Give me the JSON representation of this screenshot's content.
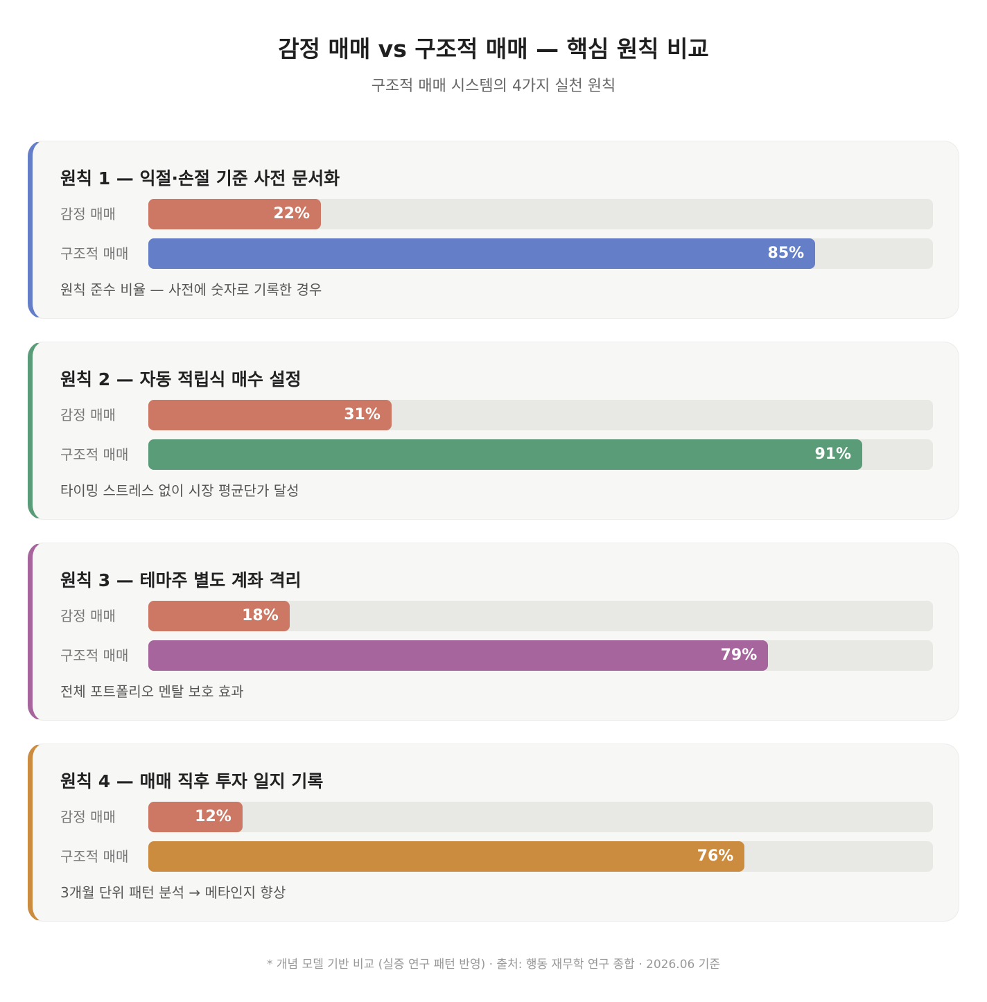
{
  "title": "감정 매매 vs 구조적 매매 — 핵심 원칙 비교",
  "subtitle": "구조적 매매 시스템의 4가지 실천 원칙",
  "footnote": "* 개념 모델 기반 비교 (실증 연구 패턴 반영) · 출처: 행동 재무학 연구 종합 · 2026.06 기준",
  "colors": {
    "emotional": "#cc7864",
    "track": "#e8e8e4"
  },
  "chart_data": {
    "type": "bar",
    "orientation": "horizontal",
    "xlim": [
      0,
      100
    ],
    "unit": "%",
    "series_names": [
      "감정 매매",
      "구조적 매매"
    ],
    "groups": [
      {
        "title": "원칙 1 — 익절·손절 기준 사전 문서화",
        "note": "원칙 준수 비율 — 사전에 숫자로 기록한 경우",
        "accent": "#647fc8",
        "rows": [
          {
            "label": "감정 매매",
            "value": 22,
            "display": "22%"
          },
          {
            "label": "구조적 매매",
            "value": 85,
            "display": "85%"
          }
        ]
      },
      {
        "title": "원칙 2 — 자동 적립식 매수 설정",
        "note": "타이밍 스트레스 없이 시장 평균단가 달성",
        "accent": "#5b9c78",
        "rows": [
          {
            "label": "감정 매매",
            "value": 31,
            "display": "31%"
          },
          {
            "label": "구조적 매매",
            "value": 91,
            "display": "91%"
          }
        ]
      },
      {
        "title": "원칙 3 — 테마주 별도 계좌 격리",
        "note": "전체 포트폴리오 멘탈 보호 효과",
        "accent": "#a6659c",
        "rows": [
          {
            "label": "감정 매매",
            "value": 18,
            "display": "18%"
          },
          {
            "label": "구조적 매매",
            "value": 79,
            "display": "79%"
          }
        ]
      },
      {
        "title": "원칙 4 — 매매 직후 투자 일지 기록",
        "note": "3개월 단위 패턴 분석 → 메타인지 향상",
        "accent": "#cc8c40",
        "rows": [
          {
            "label": "감정 매매",
            "value": 12,
            "display": "12%"
          },
          {
            "label": "구조적 매매",
            "value": 76,
            "display": "76%"
          }
        ]
      }
    ]
  }
}
